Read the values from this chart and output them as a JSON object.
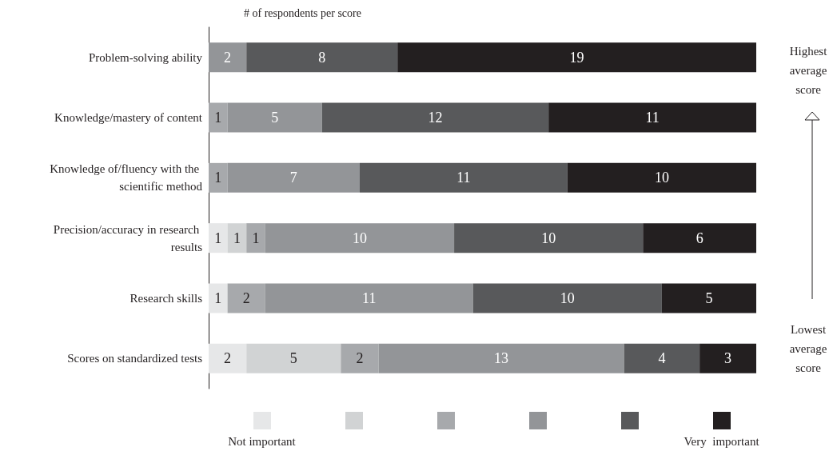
{
  "chart_data": {
    "type": "bar",
    "orientation": "horizontal",
    "stacked": true,
    "data_labels": true,
    "legend": "bottom",
    "title": "# of respondents per score",
    "categories": [
      "Problem-solving ability",
      "Knowledge/mastery of content",
      "Knowledge of/fluency with the scientific method",
      "Precision/accuracy in research results",
      "Research skills",
      "Scores on standardized tests"
    ],
    "series": [
      {
        "name": "Not important",
        "color": "#e6e7e8",
        "values": [
          null,
          null,
          null,
          1,
          1,
          2
        ]
      },
      {
        "color": "#d1d3d4",
        "values": [
          null,
          null,
          null,
          1,
          null,
          5
        ]
      },
      {
        "color": "#a7a9ac",
        "values": [
          null,
          1,
          1,
          1,
          2,
          2
        ]
      },
      {
        "color": "#939598",
        "values": [
          2,
          5,
          7,
          10,
          11,
          13
        ]
      },
      {
        "color": "#58595b",
        "values": [
          8,
          12,
          11,
          10,
          10,
          4
        ]
      },
      {
        "name": "Very  important",
        "color": "#231f20",
        "values": [
          19,
          11,
          10,
          6,
          5,
          3
        ]
      }
    ],
    "annotations": [
      "Highest average score",
      "Lowest average score"
    ]
  }
}
